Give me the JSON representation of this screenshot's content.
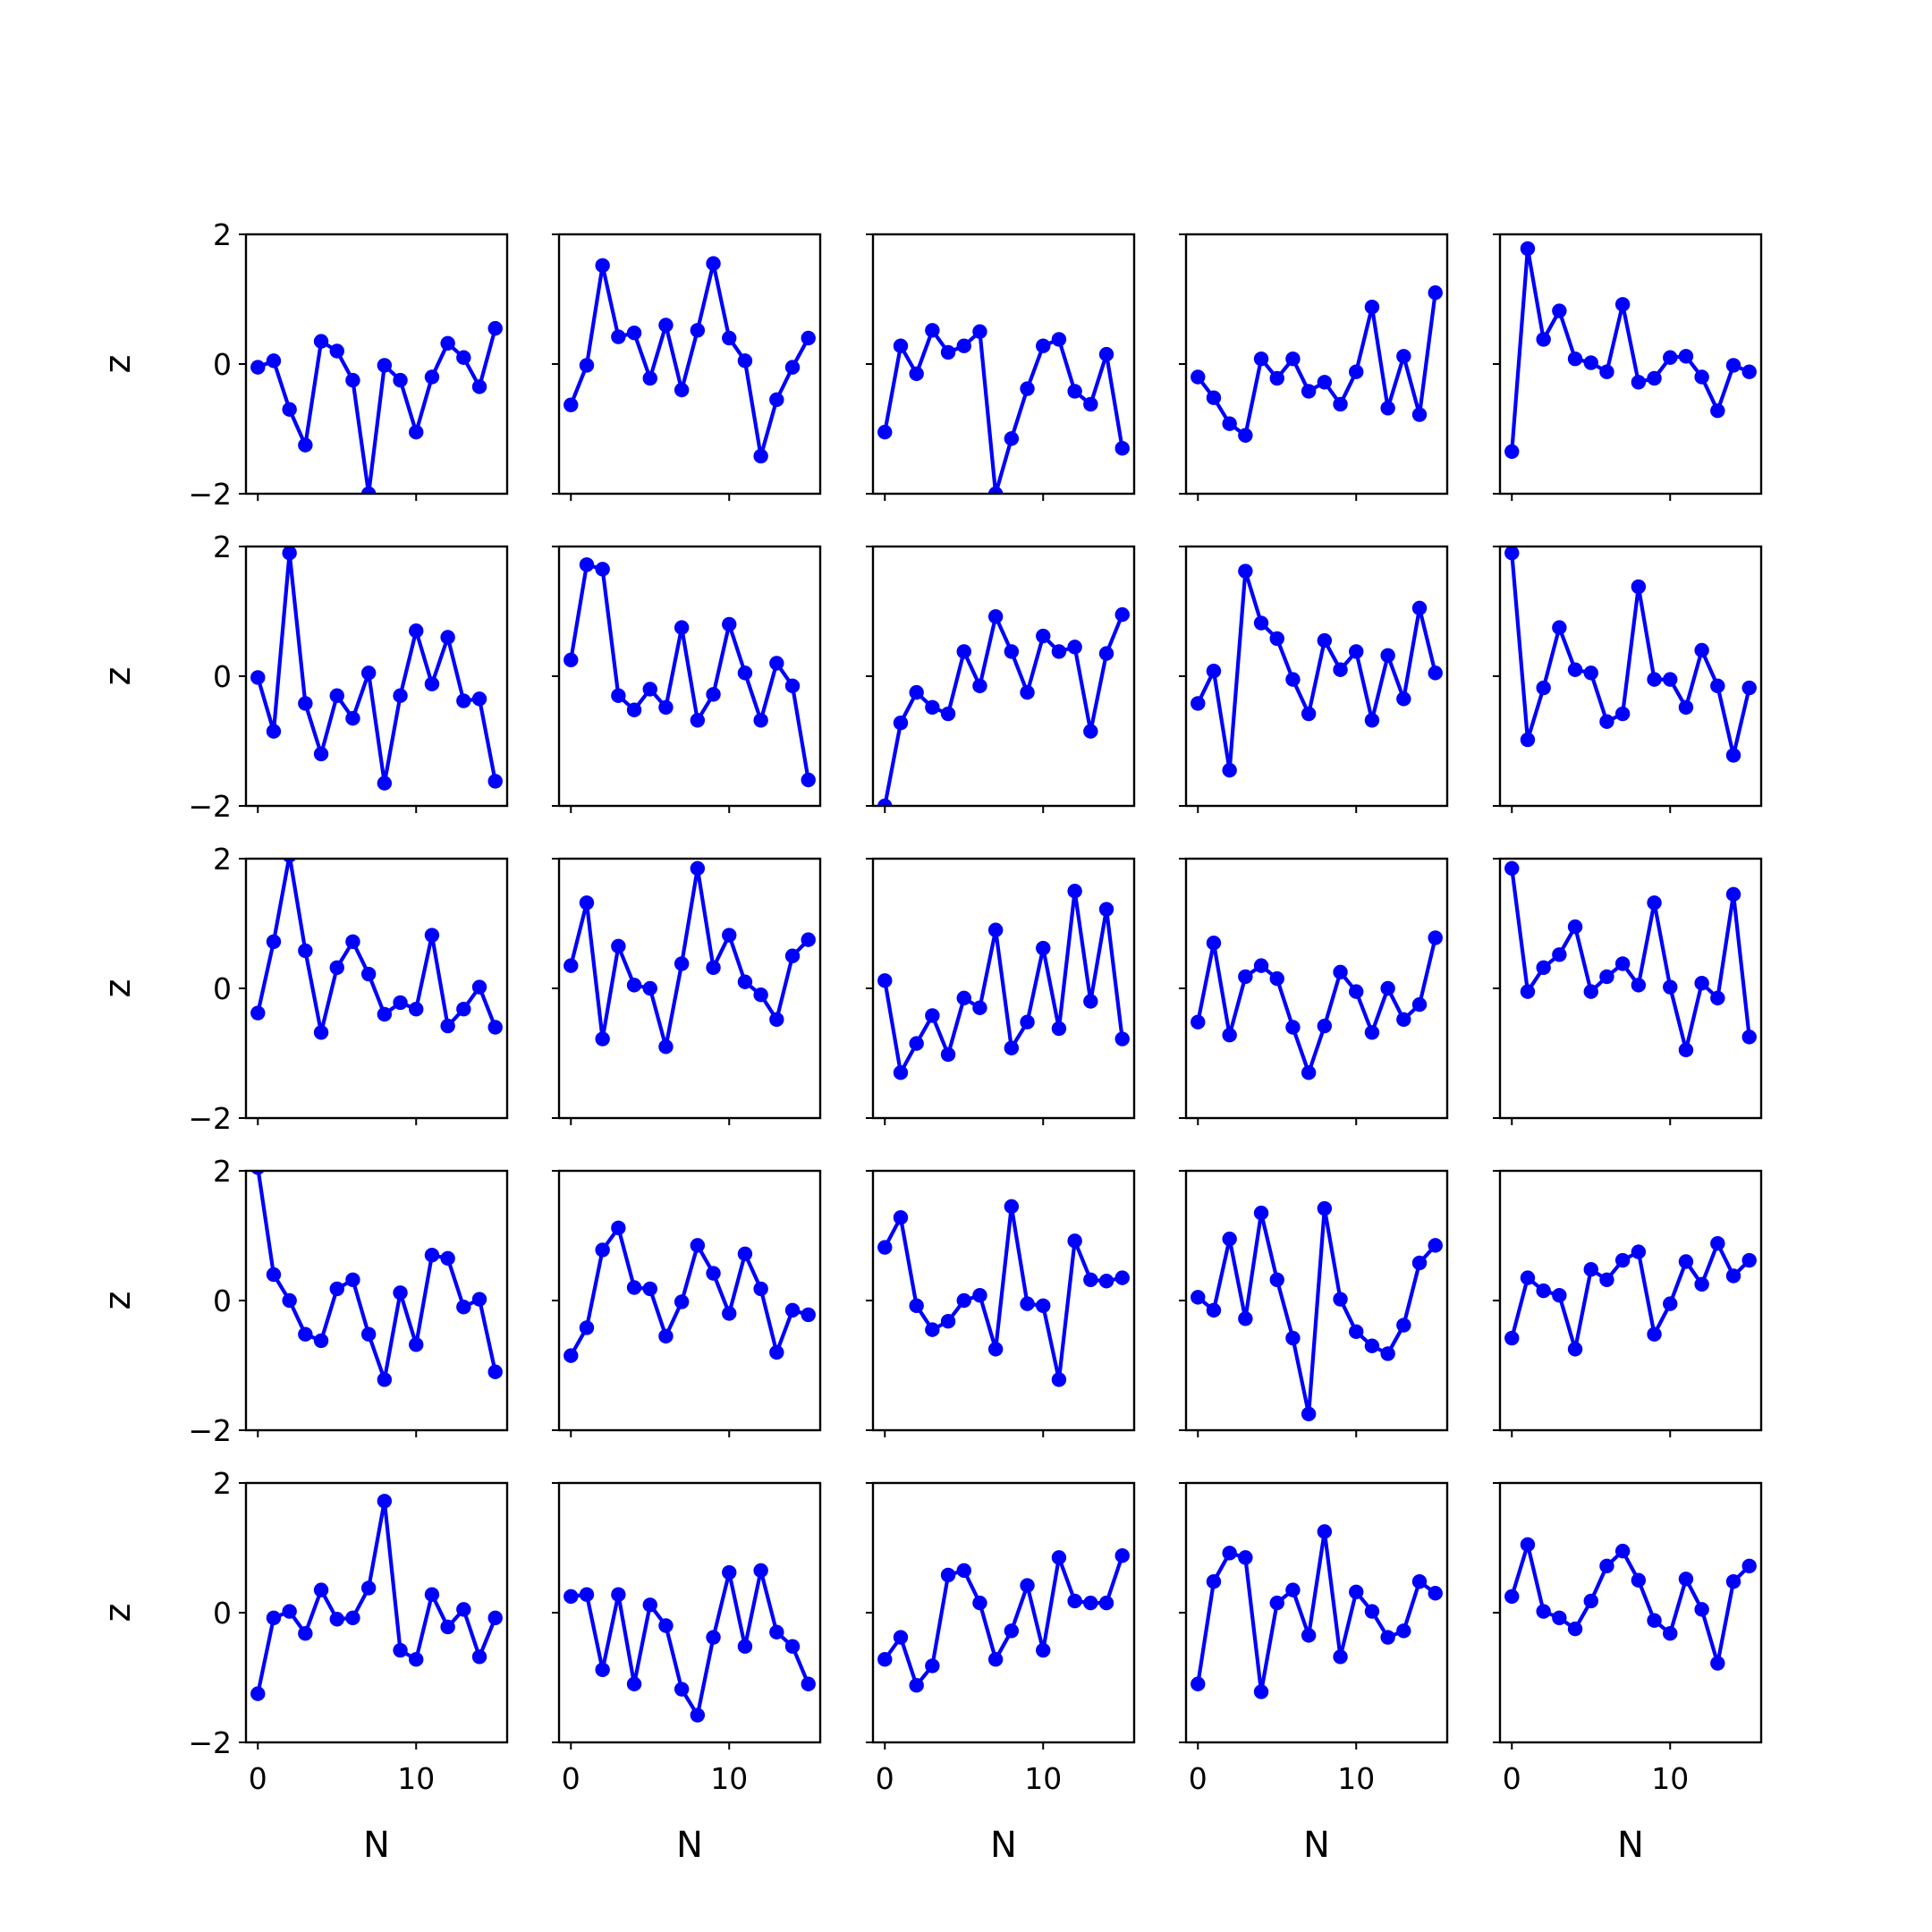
{
  "chart_data": {
    "type": "line",
    "layout": {
      "rows": 5,
      "cols": 5
    },
    "xlabel": "N",
    "ylabel": "z",
    "xlim": [
      -0.75,
      15.75
    ],
    "ylim": [
      -2,
      2
    ],
    "xticks": [
      0,
      10
    ],
    "xtick_labels": [
      "0",
      "10"
    ],
    "yticks": [
      -2,
      0,
      2
    ],
    "ytick_labels": [
      "−2",
      "0",
      "2"
    ],
    "color": "#0000ff",
    "marker": "circle",
    "x": [
      0,
      1,
      2,
      3,
      4,
      5,
      6,
      7,
      8,
      9,
      10,
      11,
      12,
      13,
      14,
      15
    ],
    "panels": [
      {
        "values": [
          -0.05,
          0.05,
          -0.7,
          -1.25,
          0.35,
          0.2,
          -0.25,
          -2.0,
          -0.02,
          -0.25,
          -1.05,
          -0.2,
          0.32,
          0.1,
          -0.35,
          0.55
        ]
      },
      {
        "values": [
          -0.63,
          -0.02,
          1.52,
          0.42,
          0.48,
          -0.22,
          0.6,
          -0.4,
          0.52,
          1.55,
          0.4,
          0.05,
          -1.42,
          -0.55,
          -0.05,
          0.4
        ]
      },
      {
        "values": [
          -1.05,
          0.28,
          -0.15,
          0.52,
          0.18,
          0.28,
          0.5,
          -2.0,
          -1.15,
          -0.38,
          0.28,
          0.38,
          -0.42,
          -0.62,
          0.15,
          -1.3
        ]
      },
      {
        "values": [
          -0.2,
          -0.52,
          -0.92,
          -1.1,
          0.08,
          -0.22,
          0.08,
          -0.42,
          -0.28,
          -0.62,
          -0.12,
          0.88,
          -0.68,
          0.12,
          -0.78,
          1.1
        ]
      },
      {
        "values": [
          -1.35,
          1.78,
          0.38,
          0.82,
          0.08,
          0.02,
          -0.12,
          0.92,
          -0.28,
          -0.22,
          0.1,
          0.12,
          -0.2,
          -0.72,
          -0.02,
          -0.12
        ]
      },
      {
        "values": [
          -0.02,
          -0.85,
          1.9,
          -0.42,
          -1.2,
          -0.3,
          -0.65,
          0.05,
          -1.65,
          -0.3,
          0.7,
          -0.12,
          0.6,
          -0.38,
          -0.35,
          -1.62
        ]
      },
      {
        "values": [
          0.25,
          1.72,
          1.65,
          -0.3,
          -0.52,
          -0.2,
          -0.48,
          0.75,
          -0.68,
          -0.28,
          0.8,
          0.05,
          -0.68,
          0.2,
          -0.15,
          -1.6
        ]
      },
      {
        "values": [
          -2.0,
          -0.72,
          -0.25,
          -0.48,
          -0.58,
          0.38,
          -0.15,
          0.92,
          0.38,
          -0.25,
          0.62,
          0.38,
          0.45,
          -0.85,
          0.35,
          0.95
        ]
      },
      {
        "values": [
          -0.42,
          0.08,
          -1.45,
          1.62,
          0.82,
          0.58,
          -0.05,
          -0.58,
          0.55,
          0.1,
          0.38,
          -0.68,
          0.32,
          -0.35,
          1.05,
          0.05
        ]
      },
      {
        "values": [
          1.9,
          -0.98,
          -0.18,
          0.75,
          0.1,
          0.05,
          -0.7,
          -0.58,
          1.38,
          -0.05,
          -0.05,
          -0.48,
          0.4,
          -0.15,
          -1.22,
          -0.18
        ]
      },
      {
        "values": [
          -0.38,
          0.72,
          2.05,
          0.58,
          -0.68,
          0.32,
          0.72,
          0.22,
          -0.4,
          -0.22,
          -0.32,
          0.82,
          -0.58,
          -0.32,
          0.02,
          -0.6
        ]
      },
      {
        "values": [
          0.35,
          1.32,
          -0.78,
          0.65,
          0.05,
          0.0,
          -0.9,
          0.38,
          1.85,
          0.32,
          0.82,
          0.1,
          -0.1,
          -0.48,
          0.5,
          0.75
        ]
      },
      {
        "values": [
          0.12,
          -1.3,
          -0.85,
          -0.42,
          -1.02,
          -0.15,
          -0.3,
          0.9,
          -0.92,
          -0.52,
          0.62,
          -0.62,
          1.5,
          -0.2,
          1.22,
          -0.78
        ]
      },
      {
        "values": [
          -0.52,
          0.7,
          -0.72,
          0.18,
          0.35,
          0.15,
          -0.6,
          -1.3,
          -0.58,
          0.25,
          -0.05,
          -0.68,
          0.0,
          -0.48,
          -0.25,
          0.78
        ]
      },
      {
        "values": [
          1.85,
          -0.05,
          0.32,
          0.52,
          0.95,
          -0.05,
          0.18,
          0.38,
          0.05,
          1.32,
          0.02,
          -0.95,
          0.08,
          -0.15,
          1.45,
          -0.75
        ]
      },
      {
        "values": [
          2.05,
          0.4,
          0.0,
          -0.52,
          -0.62,
          0.18,
          0.32,
          -0.52,
          -1.22,
          0.12,
          -0.68,
          0.7,
          0.65,
          -0.1,
          0.02,
          -1.1
        ]
      },
      {
        "values": [
          -0.85,
          -0.42,
          0.78,
          1.12,
          0.2,
          0.18,
          -0.55,
          -0.02,
          0.85,
          0.42,
          -0.2,
          0.72,
          0.18,
          -0.8,
          -0.15,
          -0.22
        ]
      },
      {
        "values": [
          0.82,
          1.28,
          -0.08,
          -0.45,
          -0.32,
          0.0,
          0.08,
          -0.75,
          1.45,
          -0.05,
          -0.08,
          -1.22,
          0.92,
          0.32,
          0.3,
          0.35
        ]
      },
      {
        "values": [
          0.05,
          -0.15,
          0.95,
          -0.28,
          1.35,
          0.32,
          -0.58,
          -1.75,
          1.42,
          0.02,
          -0.48,
          -0.7,
          -0.82,
          -0.38,
          0.58,
          0.85
        ]
      },
      {
        "values": [
          -0.58,
          0.35,
          0.15,
          0.08,
          -0.75,
          0.48,
          0.32,
          0.62,
          0.75,
          -0.52,
          -0.05,
          0.6,
          0.25,
          0.88,
          0.38,
          0.62
        ]
      },
      {
        "values": [
          -1.25,
          -0.08,
          0.02,
          -0.32,
          0.35,
          -0.1,
          -0.08,
          0.38,
          1.72,
          -0.58,
          -0.72,
          0.28,
          -0.22,
          0.05,
          -0.68,
          -0.08
        ]
      },
      {
        "values": [
          0.25,
          0.28,
          -0.88,
          0.28,
          -1.1,
          0.12,
          -0.2,
          -1.18,
          -1.58,
          -0.38,
          0.62,
          -0.52,
          0.65,
          -0.3,
          -0.52,
          -1.1
        ]
      },
      {
        "values": [
          -0.72,
          -0.38,
          -1.12,
          -0.82,
          0.58,
          0.65,
          0.15,
          -0.72,
          -0.28,
          0.42,
          -0.58,
          0.85,
          0.18,
          0.15,
          0.15,
          0.88
        ]
      },
      {
        "values": [
          -1.1,
          0.48,
          0.92,
          0.85,
          -1.22,
          0.15,
          0.35,
          -0.35,
          1.25,
          -0.68,
          0.32,
          0.02,
          -0.38,
          -0.28,
          0.48,
          0.3
        ]
      },
      {
        "values": [
          0.25,
          1.05,
          0.02,
          -0.08,
          -0.25,
          0.18,
          0.72,
          0.95,
          0.5,
          -0.12,
          -0.32,
          0.52,
          0.05,
          -0.78,
          0.48,
          0.72
        ]
      }
    ]
  }
}
